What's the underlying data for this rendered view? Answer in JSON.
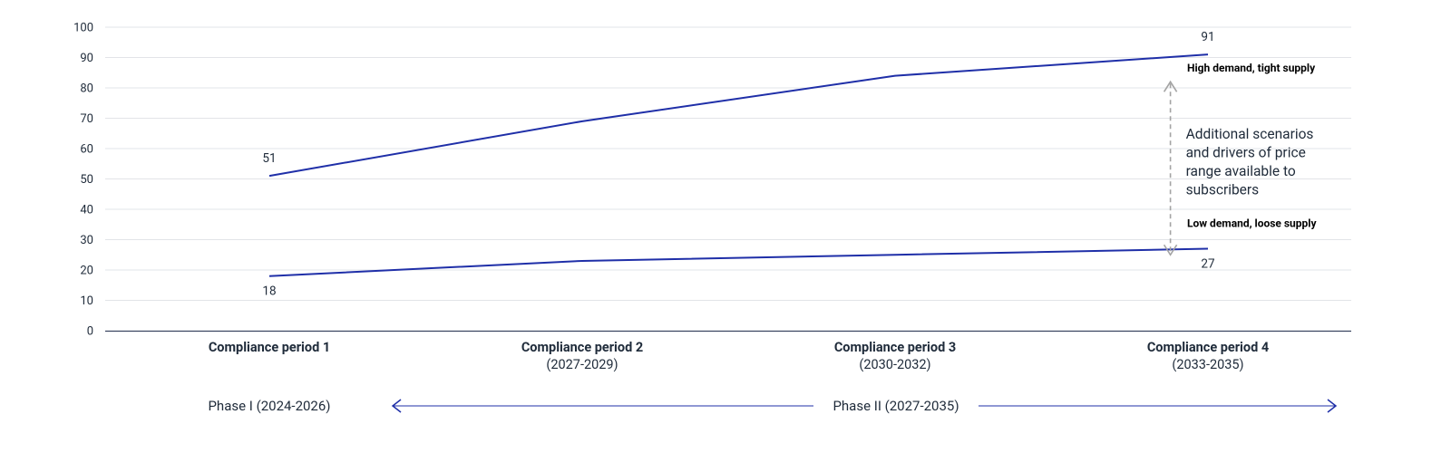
{
  "colors": {
    "series": "#1f2fa8",
    "grid": "#e2e4e8",
    "axis": "#3a4560",
    "arrow": "#a3a3a3",
    "text": "#1f2b3a"
  },
  "chart_data": {
    "type": "line",
    "categories": [
      {
        "name": "Compliance period 1",
        "years": ""
      },
      {
        "name": "Compliance period 2",
        "years": "(2027-2029)"
      },
      {
        "name": "Compliance period 3",
        "years": "(2030-2032)"
      },
      {
        "name": "Compliance period 4",
        "years": "(2033-2035)"
      }
    ],
    "series": [
      {
        "name": "High demand, tight supply",
        "values": [
          51,
          69,
          84,
          91
        ],
        "labels": [
          "51",
          "",
          "",
          "91"
        ]
      },
      {
        "name": "Low demand, loose supply",
        "values": [
          18,
          23,
          25,
          27
        ],
        "labels": [
          "18",
          "",
          "",
          "27"
        ]
      }
    ],
    "ylim": [
      0,
      100
    ],
    "yticks": [
      0,
      10,
      20,
      30,
      40,
      50,
      60,
      70,
      80,
      90,
      100
    ],
    "grid": true,
    "xlabel": "",
    "ylabel": "",
    "title": "",
    "annotation": {
      "lines": [
        "Additional scenarios",
        "and drivers of price",
        "range available to",
        "subscribers"
      ],
      "x_between": [
        2.5,
        3
      ],
      "range": [
        25,
        82
      ]
    }
  },
  "phases": {
    "phase1": "Phase I (2024-2026)",
    "phase2": "Phase II (2027-2035)"
  }
}
